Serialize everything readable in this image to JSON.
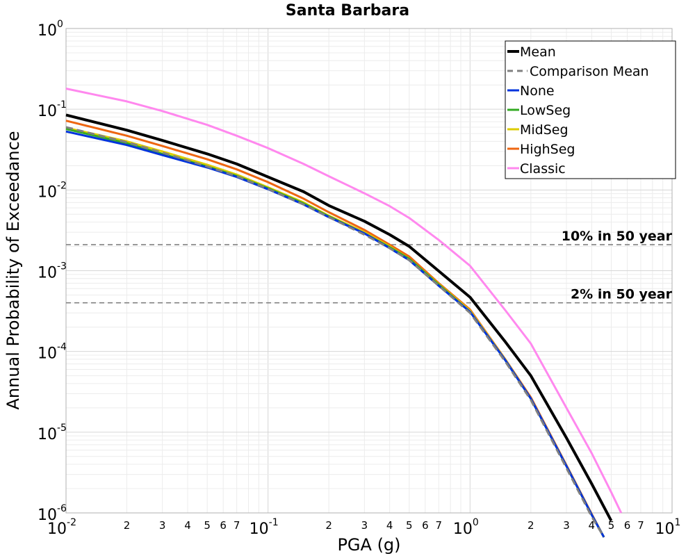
{
  "chart_data": {
    "type": "line",
    "title": "Santa Barbara",
    "xlabel": "PGA (g)",
    "ylabel": "Annual Probability of Exceedance",
    "xscale": "log",
    "yscale": "log",
    "xlim": [
      0.01,
      10
    ],
    "ylim": [
      1e-06,
      1
    ],
    "grid": true,
    "legend_position": "top-right",
    "x_major_ticks": [
      {
        "base": "10",
        "exp": "-2",
        "value": 0.01
      },
      {
        "base": "10",
        "exp": "-1",
        "value": 0.1
      },
      {
        "base": "10",
        "exp": "0",
        "value": 1
      },
      {
        "base": "10",
        "exp": "1",
        "value": 10
      }
    ],
    "x_minor_tick_labels": [
      "2",
      "3",
      "4",
      "5",
      "6",
      "7"
    ],
    "y_major_ticks": [
      {
        "base": "10",
        "exp": "0",
        "value": 1
      },
      {
        "base": "10",
        "exp": "-1",
        "value": 0.1
      },
      {
        "base": "10",
        "exp": "-2",
        "value": 0.01
      },
      {
        "base": "10",
        "exp": "-3",
        "value": 0.001
      },
      {
        "base": "10",
        "exp": "-4",
        "value": 0.0001
      },
      {
        "base": "10",
        "exp": "-5",
        "value": 1e-05
      },
      {
        "base": "10",
        "exp": "-6",
        "value": 1e-06
      }
    ],
    "reference_lines": [
      {
        "label": "10% in 50 year",
        "y": 0.0021,
        "color": "#808080"
      },
      {
        "label": "2% in 50 year",
        "y": 0.0004,
        "color": "#808080"
      }
    ],
    "series": [
      {
        "name": "Mean",
        "color": "#000000",
        "dash": "solid",
        "width": 4,
        "x": [
          0.01,
          0.02,
          0.03,
          0.05,
          0.07,
          0.1,
          0.15,
          0.2,
          0.3,
          0.4,
          0.5,
          0.7,
          1.0,
          1.5,
          2.0,
          3.0,
          4.0,
          5.0
        ],
        "y": [
          0.085,
          0.055,
          0.041,
          0.028,
          0.021,
          0.0145,
          0.0095,
          0.0064,
          0.0041,
          0.0028,
          0.002,
          0.00099,
          0.00047,
          0.00013,
          5e-05,
          8.5e-06,
          2.3e-06,
          8e-07
        ]
      },
      {
        "name": "Comparison Mean",
        "color": "#808080",
        "dash": "dashed",
        "width": 3,
        "x": [
          0.01,
          0.02,
          0.03,
          0.05,
          0.07,
          0.1,
          0.15,
          0.2,
          0.3,
          0.4,
          0.5,
          0.7,
          1.0,
          1.5,
          2.0,
          3.0,
          4.0,
          4.6
        ],
        "y": [
          0.06,
          0.039,
          0.029,
          0.0195,
          0.0148,
          0.0103,
          0.0066,
          0.0046,
          0.0028,
          0.0019,
          0.00135,
          0.00065,
          0.0003,
          7.4e-05,
          2.5e-05,
          3.6e-06,
          9e-07,
          5e-07
        ]
      },
      {
        "name": "None",
        "color": "#0033dd",
        "dash": "solid",
        "width": 3,
        "x": [
          0.01,
          0.02,
          0.03,
          0.05,
          0.07,
          0.1,
          0.15,
          0.2,
          0.3,
          0.4,
          0.5,
          0.7,
          1.0,
          1.5,
          2.0,
          3.0,
          4.0,
          4.6
        ],
        "y": [
          0.053,
          0.036,
          0.027,
          0.019,
          0.0145,
          0.0102,
          0.0066,
          0.0046,
          0.0029,
          0.0019,
          0.00135,
          0.00065,
          0.00031,
          7.7e-05,
          2.6e-05,
          3.8e-06,
          9.5e-07,
          5e-07
        ]
      },
      {
        "name": "LowSeg",
        "color": "#33aa22",
        "dash": "solid",
        "width": 3,
        "x": [
          0.01,
          0.02,
          0.03,
          0.05,
          0.07,
          0.1,
          0.15,
          0.2,
          0.3,
          0.4,
          0.5,
          0.7,
          1.0,
          1.5,
          2.0,
          3.0,
          4.0,
          4.6
        ],
        "y": [
          0.057,
          0.038,
          0.028,
          0.0195,
          0.0149,
          0.0105,
          0.0068,
          0.0047,
          0.0029,
          0.00195,
          0.0014,
          0.00067,
          0.00031,
          7.7e-05,
          2.6e-05,
          3.8e-06,
          9.5e-07,
          5e-07
        ]
      },
      {
        "name": "MidSeg",
        "color": "#ddcc00",
        "dash": "solid",
        "width": 3,
        "x": [
          0.01,
          0.02,
          0.03,
          0.05,
          0.07,
          0.1,
          0.15,
          0.2,
          0.3,
          0.4,
          0.5,
          0.7,
          1.0,
          1.5,
          2.0,
          3.0,
          4.0,
          4.6
        ],
        "y": [
          0.059,
          0.04,
          0.03,
          0.0205,
          0.0155,
          0.0108,
          0.007,
          0.0048,
          0.003,
          0.002,
          0.0014,
          0.00068,
          0.00032,
          7.8e-05,
          2.6e-05,
          3.8e-06,
          9.5e-07,
          5e-07
        ]
      },
      {
        "name": "HighSeg",
        "color": "#ee6611",
        "dash": "solid",
        "width": 3,
        "x": [
          0.01,
          0.02,
          0.03,
          0.05,
          0.07,
          0.1,
          0.15,
          0.2,
          0.3,
          0.4,
          0.5,
          0.7,
          1.0,
          1.5,
          2.0,
          3.0,
          4.0,
          4.6
        ],
        "y": [
          0.072,
          0.047,
          0.035,
          0.024,
          0.018,
          0.0125,
          0.0078,
          0.0053,
          0.0032,
          0.0021,
          0.0015,
          0.0007,
          0.00033,
          7.9e-05,
          2.7e-05,
          3.9e-06,
          9.7e-07,
          5e-07
        ]
      },
      {
        "name": "Classic",
        "color": "#ff88ee",
        "dash": "solid",
        "width": 3,
        "x": [
          0.01,
          0.02,
          0.03,
          0.05,
          0.07,
          0.1,
          0.15,
          0.2,
          0.3,
          0.4,
          0.5,
          0.7,
          1.0,
          1.5,
          2.0,
          3.0,
          4.0,
          5.0,
          5.6
        ],
        "y": [
          0.18,
          0.125,
          0.095,
          0.064,
          0.047,
          0.033,
          0.021,
          0.0148,
          0.0091,
          0.0063,
          0.0045,
          0.0024,
          0.00115,
          0.00032,
          0.000125,
          2e-05,
          5.5e-06,
          1.8e-06,
          1e-06
        ]
      }
    ]
  }
}
